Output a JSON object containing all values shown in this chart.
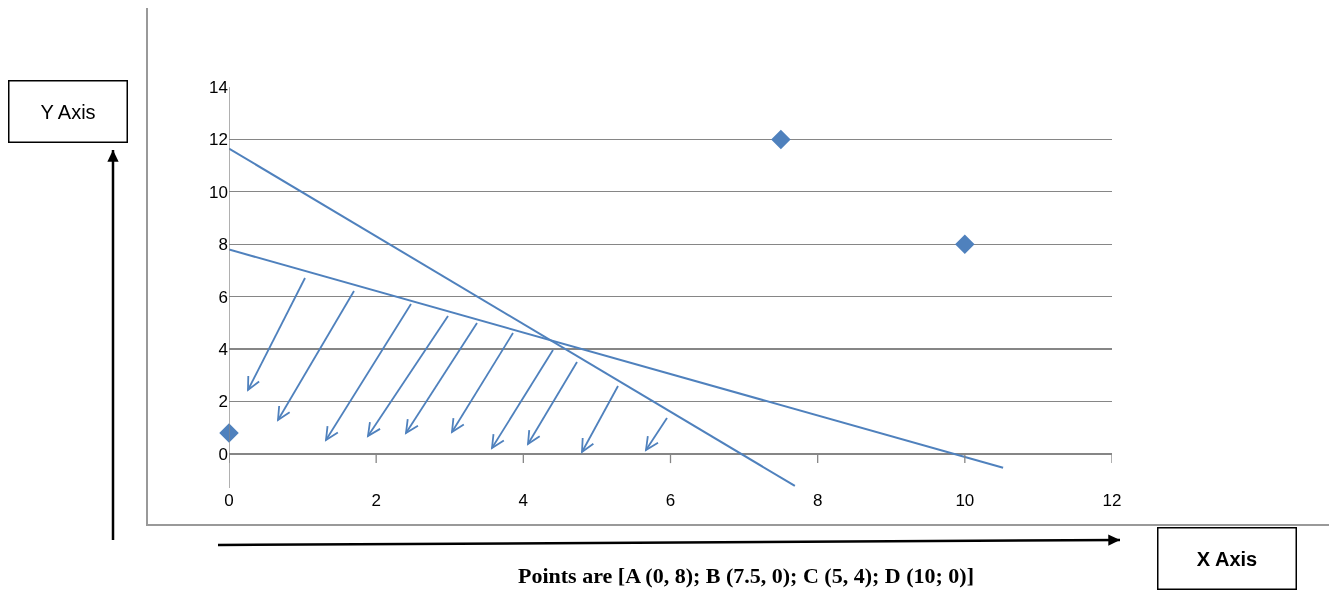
{
  "chart_data": {
    "type": "scatter",
    "annotations": [
      "Points are [A (0, 8); B (7.5, 0); C (5, 4); D (10; 0)]",
      "Y Axis",
      "X Axis"
    ],
    "xlim": [
      0,
      12
    ],
    "xticks": [
      0,
      2,
      4,
      6,
      8,
      10,
      12
    ],
    "ylim": [
      -1.3,
      14
    ],
    "yticks": [
      0,
      2,
      4,
      6,
      8,
      10,
      12,
      14
    ],
    "grid": "y",
    "series": [
      {
        "type": "line",
        "color": "#4f81bd",
        "x": [
          0,
          7.69
        ],
        "values": [
          11.65,
          -1.22
        ],
        "marker": "none",
        "line_style": "solid"
      },
      {
        "type": "line",
        "color": "#4f81bd",
        "x": [
          0,
          10.52
        ],
        "values": [
          7.8,
          -0.53
        ],
        "marker": "none",
        "line_style": "solid"
      },
      {
        "type": "scatter",
        "color": "#4f81bd",
        "x": [
          0,
          7.5,
          10
        ],
        "values": [
          0.8,
          12,
          8
        ],
        "marker": "diamond"
      }
    ]
  }
}
